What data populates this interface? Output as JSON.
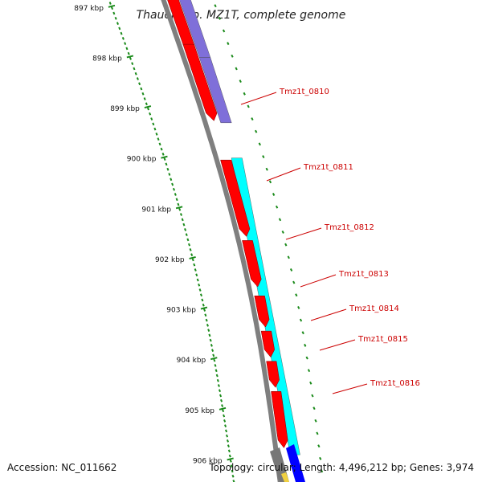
{
  "title": "Thauera sp. MZ1T, complete genome",
  "accession": "Accession: NC_011662",
  "summary": "Topology: circular; Length: 4,496,212 bp; Genes: 3,974",
  "colors": {
    "backbone": "#7f7f7f",
    "cds": "#ff0000",
    "feature_a": "#7f6fd9",
    "feature_b": "#00ffff",
    "ticks": "#1a8a1a",
    "labels": "#cc0000",
    "other_gray": "#777777",
    "other_blue": "#0000ff"
  },
  "ticks": [
    {
      "label": "897 kbp",
      "pos": 897
    },
    {
      "label": "898 kbp",
      "pos": 898
    },
    {
      "label": "899 kbp",
      "pos": 899
    },
    {
      "label": "900 kbp",
      "pos": 900
    },
    {
      "label": "901 kbp",
      "pos": 901
    },
    {
      "label": "902 kbp",
      "pos": 902
    },
    {
      "label": "903 kbp",
      "pos": 903
    },
    {
      "label": "904 kbp",
      "pos": 904
    },
    {
      "label": "905 kbp",
      "pos": 905
    },
    {
      "label": "906 kbp",
      "pos": 906
    }
  ],
  "genes": [
    {
      "label": "Tmz1t_0810",
      "start": 897.7,
      "end": 899.3
    },
    {
      "label": "Tmz1t_0811",
      "start": 900.0,
      "end": 901.6
    },
    {
      "label": "Tmz1t_0812",
      "start": 901.6,
      "end": 902.6
    },
    {
      "label": "Tmz1t_0813",
      "start": 902.7,
      "end": 903.4
    },
    {
      "label": "Tmz1t_0814",
      "start": 903.4,
      "end": 904.0
    },
    {
      "label": "Tmz1t_0815",
      "start": 904.0,
      "end": 904.6
    },
    {
      "label": "Tmz1t_0816",
      "start": 904.6,
      "end": 905.8
    }
  ]
}
